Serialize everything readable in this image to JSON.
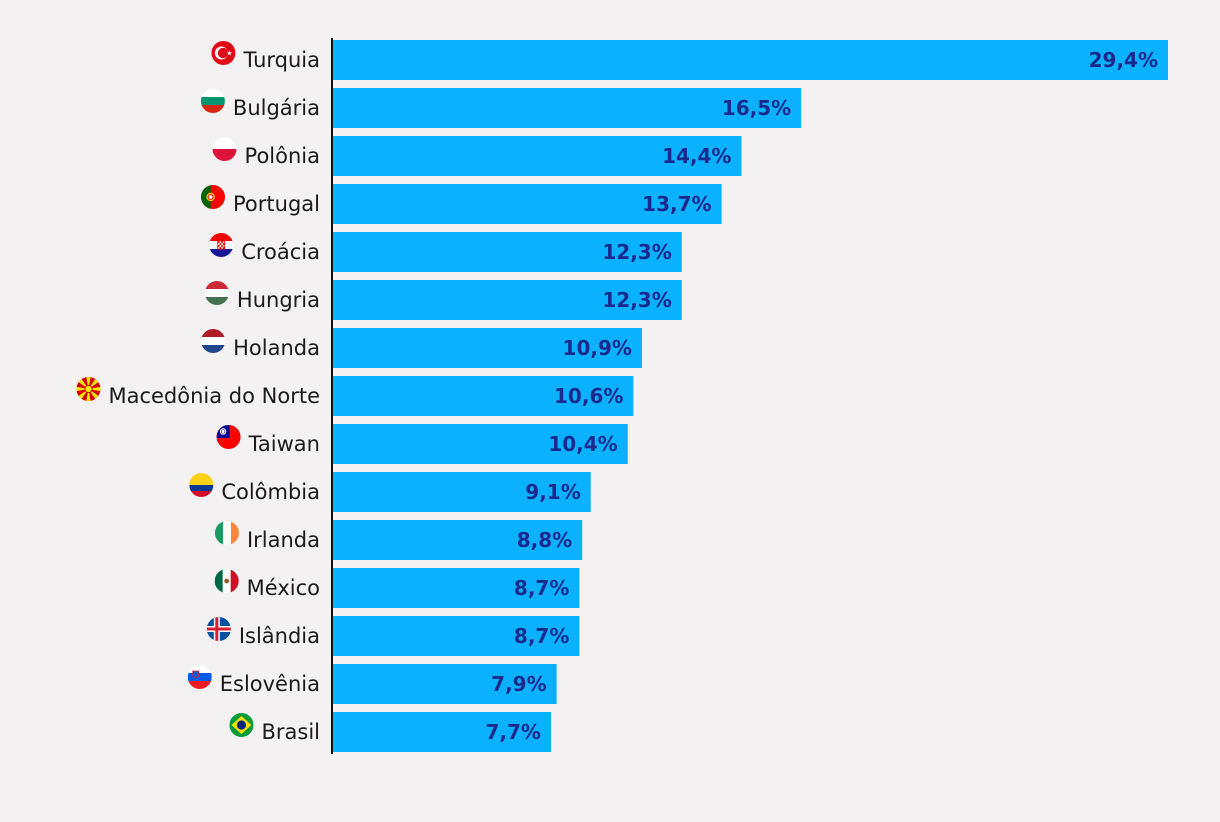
{
  "colors": {
    "background": "#f3f1f2",
    "bar": "#0ab1ff",
    "value_label": "#1a2a8c",
    "category_label": "#1a1a1a",
    "axis": "#111111"
  },
  "chart_data": {
    "type": "bar",
    "orientation": "horizontal",
    "title": "",
    "xlabel": "",
    "ylabel": "",
    "xlim": [
      0,
      29.4
    ],
    "grid": false,
    "legend": "none",
    "categories": [
      "Turquia",
      "Bulgária",
      "Polônia",
      "Portugal",
      "Croácia",
      "Hungria",
      "Holanda",
      "Macedônia do Norte",
      "Taiwan",
      "Colômbia",
      "Irlanda",
      "México",
      "Islândia",
      "Eslovênia",
      "Brasil"
    ],
    "values": [
      29.4,
      16.5,
      14.4,
      13.7,
      12.3,
      12.3,
      10.9,
      10.6,
      10.4,
      9.1,
      8.8,
      8.7,
      8.7,
      7.9,
      7.7
    ],
    "value_labels": [
      "29,4%",
      "16,5%",
      "14,4%",
      "13,7%",
      "12,3%",
      "12,3%",
      "10,9%",
      "10,6%",
      "10,4%",
      "9,1%",
      "8,8%",
      "8,7%",
      "8,7%",
      "7,9%",
      "7,7%"
    ],
    "flag_icons": [
      "flag-turkey-icon",
      "flag-bulgaria-icon",
      "flag-poland-icon",
      "flag-portugal-icon",
      "flag-croatia-icon",
      "flag-hungary-icon",
      "flag-netherlands-icon",
      "flag-north-macedonia-icon",
      "flag-taiwan-icon",
      "flag-colombia-icon",
      "flag-ireland-icon",
      "flag-mexico-icon",
      "flag-iceland-icon",
      "flag-slovenia-icon",
      "flag-brazil-icon"
    ]
  }
}
